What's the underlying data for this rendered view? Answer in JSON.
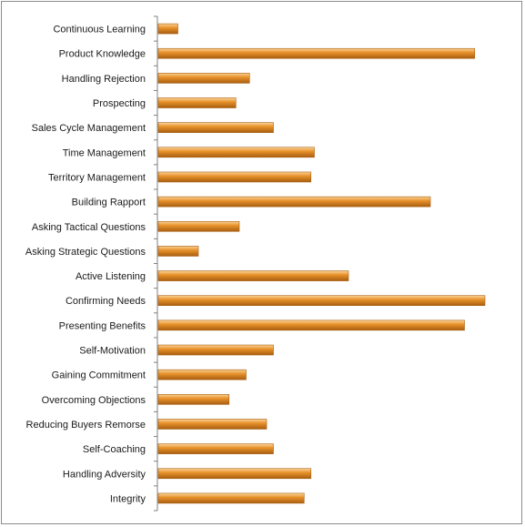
{
  "chart_data": {
    "type": "bar",
    "orientation": "horizontal",
    "categories": [
      "Continuous Learning",
      "Product Knowledge",
      "Handling Rejection",
      "Prospecting",
      "Sales Cycle Management",
      "Time Management",
      "Territory Management",
      "Building Rapport",
      "Asking Tactical Questions",
      "Asking Strategic Questions",
      "Active Listening",
      "Confirming Needs",
      "Presenting Benefits",
      "Self-Motivation",
      "Gaining Commitment",
      "Overcoming Objections",
      "Reducing Buyers Remorse",
      "Self-Coaching",
      "Handling Adversity",
      "Integrity"
    ],
    "values": [
      6,
      93,
      27,
      23,
      34,
      46,
      45,
      80,
      24,
      12,
      56,
      96,
      90,
      34,
      26,
      21,
      32,
      34,
      45,
      43
    ],
    "xlim": [
      0,
      100
    ],
    "title": "",
    "xlabel": "",
    "ylabel": "",
    "grid": false,
    "legend": "none",
    "bar_color": "#E8922B",
    "bar_highlight": "#FBD49A",
    "bar_shadow": "#A85E10"
  }
}
